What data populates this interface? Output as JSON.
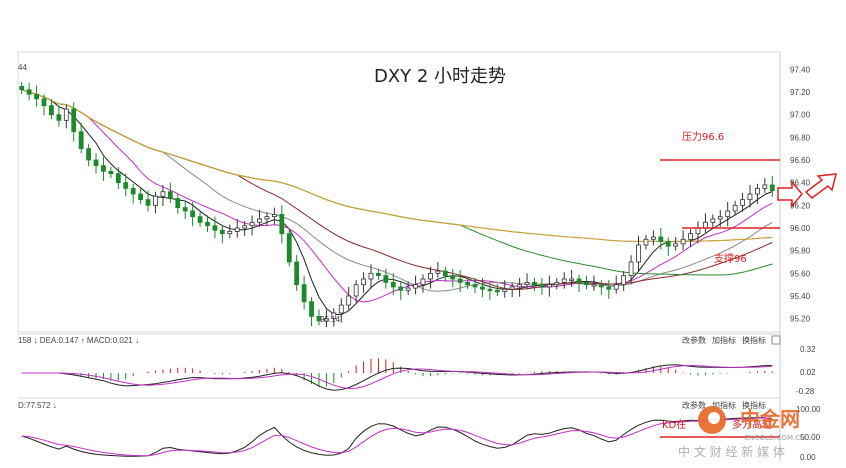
{
  "chart_data": {
    "type": "candlestick",
    "title": "DXY 2 小时走势",
    "y_ticks": [
      "97.40",
      "97.20",
      "97.00",
      "96.80",
      "96.60",
      "96.40",
      "96.20",
      "96.00",
      "95.80",
      "95.60",
      "95.40",
      "95.20"
    ],
    "ylim": [
      95.1,
      97.5
    ],
    "top_left_label": "44",
    "low_label": "95.14",
    "resistance": {
      "label": "压力96.6",
      "value": 96.6
    },
    "support": {
      "label": "支撑96",
      "value": 96.0
    },
    "closes": [
      97.22,
      97.18,
      97.14,
      97.08,
      97.0,
      96.95,
      97.05,
      96.85,
      96.7,
      96.6,
      96.55,
      96.5,
      96.48,
      96.4,
      96.35,
      96.3,
      96.25,
      96.2,
      96.28,
      96.32,
      96.26,
      96.18,
      96.15,
      96.1,
      96.05,
      96.02,
      95.98,
      95.95,
      95.97,
      96.0,
      96.02,
      96.05,
      96.08,
      96.1,
      96.12,
      95.95,
      95.7,
      95.5,
      95.35,
      95.22,
      95.18,
      95.2,
      95.25,
      95.32,
      95.4,
      95.5,
      95.55,
      95.6,
      95.58,
      95.52,
      95.48,
      95.45,
      95.47,
      95.5,
      95.55,
      95.6,
      95.62,
      95.58,
      95.55,
      95.52,
      95.5,
      95.48,
      95.46,
      95.45,
      95.44,
      95.46,
      95.48,
      95.5,
      95.52,
      95.5,
      95.48,
      95.5,
      95.52,
      95.55,
      95.55,
      95.52,
      95.5,
      95.5,
      95.48,
      95.46,
      95.5,
      95.58,
      95.7,
      95.85,
      95.9,
      95.92,
      95.88,
      95.84,
      95.86,
      95.9,
      95.95,
      96.0,
      96.05,
      96.08,
      96.1,
      96.15,
      96.2,
      96.25,
      96.3,
      96.35,
      96.38,
      96.33
    ],
    "ma_series": [
      {
        "color": "#1f1f1f",
        "window": 5
      },
      {
        "color": "#c22fc8",
        "window": 10
      },
      {
        "color": "#8a8a8a",
        "window": 20
      },
      {
        "color": "#8a2a2a",
        "window": 30
      },
      {
        "color": "#2e8b2e",
        "window": 60
      },
      {
        "color": "#3a86c8",
        "window": 120
      },
      {
        "color": "#e0a020",
        "window": 200
      }
    ],
    "macd": {
      "label": "158 ↓ DEA:0.147 ↑ MACD:0.021 ↓",
      "y_ticks": [
        "0.32",
        "0.02",
        "-0.28"
      ],
      "buttons": [
        "改参数",
        "加指标",
        "换指标"
      ]
    },
    "kdj": {
      "label": "D:77.572 ↓",
      "y_ticks": [
        "100.00",
        "50.00",
        "0.00"
      ],
      "annotation": "KD在",
      "annotation2": "多方高位",
      "buttons": [
        "改参数",
        "加指标",
        "换指标"
      ]
    }
  },
  "watermark": {
    "brand": "中金网",
    "domain": "CNGOLD.COM.CN",
    "sub": "中 文 财 经 新 媒 体"
  }
}
